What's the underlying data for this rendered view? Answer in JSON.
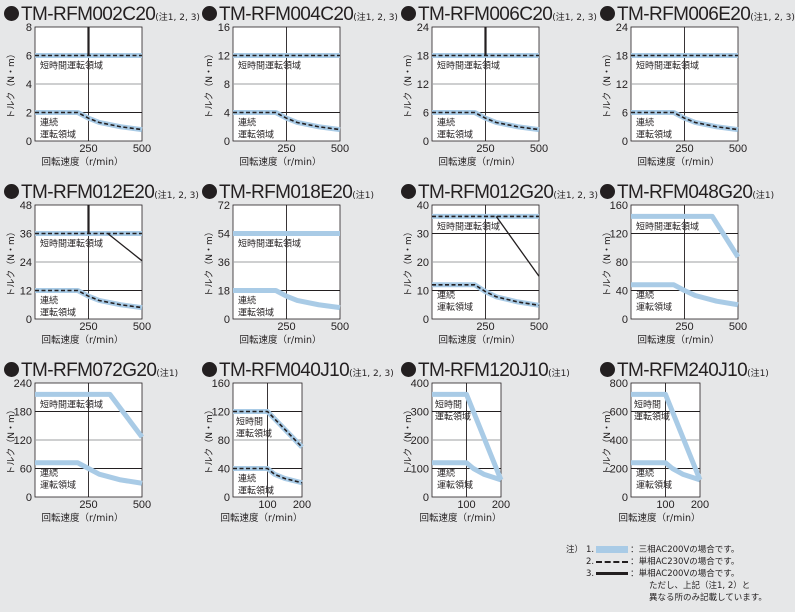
{
  "labels": {
    "y_axis": "トルク（N・m）",
    "x_axis": "回転速度（r/min）",
    "short_time_region": "短時間運転領域",
    "short_time_region_line1": "短時間",
    "short_time_region_line2": "運転領域",
    "continuous_region_line1": "連続",
    "continuous_region_line2": "運転領域"
  },
  "colors": {
    "background": "#e6e7e8",
    "plot_bg": "#ffffff",
    "three_phase_ac200v": "#a9cbe6",
    "single_phase_ac230v": "#231f20",
    "single_phase_ac200v": "#231f20",
    "grid": "#231f20",
    "grid_light": "#aaaaaa"
  },
  "notes": {
    "prefix": "注）",
    "items": [
      {
        "num": "1.",
        "style": "three_phase_ac200v",
        "text": "：三相AC200Vの場合です。"
      },
      {
        "num": "2.",
        "style": "single_phase_ac230v",
        "text": "：単相AC230Vの場合です。"
      },
      {
        "num": "3.",
        "style": "single_phase_ac200v",
        "text": "：単相AC200Vの場合です。"
      }
    ],
    "extra_line1": "ただし、上記（注1, 2）と",
    "extra_line2": "異なる所のみ記載しています。"
  },
  "chart_data": [
    {
      "type": "line",
      "title": "TM-RFM002C20",
      "note": "(注1, 2, 3)",
      "xlabel": "回転速度（r/min）",
      "ylabel": "トルク（N・m）",
      "xlim": [
        0,
        500
      ],
      "ylim": [
        0,
        8
      ],
      "xticks": [
        "250",
        "500"
      ],
      "yticks": [
        "0",
        "2",
        "4",
        "6",
        "8"
      ],
      "short_label": "one",
      "series": [
        {
          "name": "三相AC200V 短時間",
          "style": "blue",
          "x": [
            0,
            500
          ],
          "y": [
            6,
            6
          ]
        },
        {
          "name": "三相AC200V 連続",
          "style": "blue",
          "x": [
            0,
            200,
            250,
            300,
            400,
            500
          ],
          "y": [
            2,
            2,
            1.6,
            1.3,
            1.0,
            0.8
          ]
        },
        {
          "name": "単相AC230V 短時間",
          "style": "dash",
          "x": [
            0,
            500
          ],
          "y": [
            6,
            6
          ]
        },
        {
          "name": "単相AC230V 連続",
          "style": "dash",
          "x": [
            0,
            200,
            250,
            300,
            400,
            500
          ],
          "y": [
            2,
            2,
            1.6,
            1.3,
            1.0,
            0.8
          ]
        },
        {
          "name": "単相AC200V",
          "style": "solid",
          "x": [
            250,
            250
          ],
          "y": [
            6,
            8
          ]
        }
      ]
    },
    {
      "type": "line",
      "title": "TM-RFM004C20",
      "note": "(注1, 2, 3)",
      "xlabel": "回転速度（r/min）",
      "ylabel": "トルク（N・m）",
      "xlim": [
        0,
        500
      ],
      "ylim": [
        0,
        16
      ],
      "xticks": [
        "250",
        "500"
      ],
      "yticks": [
        "0",
        "4",
        "8",
        "12",
        "16"
      ],
      "short_label": "one",
      "series": [
        {
          "name": "三相AC200V 短時間",
          "style": "blue",
          "x": [
            0,
            500
          ],
          "y": [
            12,
            12
          ]
        },
        {
          "name": "三相AC200V 連続",
          "style": "blue",
          "x": [
            0,
            200,
            250,
            300,
            400,
            500
          ],
          "y": [
            4,
            4,
            3.2,
            2.6,
            2.0,
            1.6
          ]
        },
        {
          "name": "単相AC230V 短時間",
          "style": "dash",
          "x": [
            0,
            500
          ],
          "y": [
            12,
            12
          ]
        },
        {
          "name": "単相AC230V 連続",
          "style": "dash",
          "x": [
            0,
            200,
            250,
            300,
            400,
            500
          ],
          "y": [
            4,
            4,
            3.2,
            2.6,
            2.0,
            1.6
          ]
        }
      ]
    },
    {
      "type": "line",
      "title": "TM-RFM006C20",
      "note": "(注1, 2, 3)",
      "xlabel": "回転速度（r/min）",
      "ylabel": "トルク（N・m）",
      "xlim": [
        0,
        500
      ],
      "ylim": [
        0,
        24
      ],
      "xticks": [
        "250",
        "500"
      ],
      "yticks": [
        "0",
        "6",
        "12",
        "18",
        "24"
      ],
      "short_label": "one",
      "series": [
        {
          "name": "三相AC200V 短時間",
          "style": "blue",
          "x": [
            0,
            500
          ],
          "y": [
            18,
            18
          ]
        },
        {
          "name": "三相AC200V 連続",
          "style": "blue",
          "x": [
            0,
            200,
            250,
            300,
            400,
            500
          ],
          "y": [
            6,
            6,
            4.8,
            3.9,
            3.0,
            2.4
          ]
        },
        {
          "name": "単相AC230V 短時間",
          "style": "dash",
          "x": [
            0,
            500
          ],
          "y": [
            18,
            18
          ]
        },
        {
          "name": "単相AC230V 連続",
          "style": "dash",
          "x": [
            0,
            200,
            250,
            300,
            400,
            500
          ],
          "y": [
            6,
            6,
            4.8,
            3.9,
            3.0,
            2.4
          ]
        },
        {
          "name": "単相AC200V",
          "style": "solid",
          "x": [
            250,
            250
          ],
          "y": [
            18,
            24
          ]
        }
      ]
    },
    {
      "type": "line",
      "title": "TM-RFM006E20",
      "note": "(注1, 2, 3)",
      "xlabel": "回転速度（r/min）",
      "ylabel": "トルク（N・m）",
      "xlim": [
        0,
        500
      ],
      "ylim": [
        0,
        24
      ],
      "xticks": [
        "250",
        "500"
      ],
      "yticks": [
        "0",
        "6",
        "12",
        "18",
        "24"
      ],
      "short_label": "one",
      "series": [
        {
          "name": "三相AC200V 短時間",
          "style": "blue",
          "x": [
            0,
            500
          ],
          "y": [
            18,
            18
          ]
        },
        {
          "name": "三相AC200V 連続",
          "style": "blue",
          "x": [
            0,
            200,
            250,
            300,
            400,
            500
          ],
          "y": [
            6,
            6,
            4.8,
            3.9,
            3.0,
            2.4
          ]
        },
        {
          "name": "単相AC230V 短時間",
          "style": "dash",
          "x": [
            0,
            500
          ],
          "y": [
            18,
            18
          ]
        },
        {
          "name": "単相AC230V 連続",
          "style": "dash",
          "x": [
            0,
            200,
            250,
            300,
            400,
            500
          ],
          "y": [
            6,
            6,
            4.8,
            3.9,
            3.0,
            2.4
          ]
        }
      ]
    },
    {
      "type": "line",
      "title": "TM-RFM012E20",
      "note": "(注1, 2, 3)",
      "xlabel": "回転速度（r/min）",
      "ylabel": "トルク（N・m）",
      "xlim": [
        0,
        500
      ],
      "ylim": [
        0,
        48
      ],
      "xticks": [
        "250",
        "500"
      ],
      "yticks": [
        "0",
        "12",
        "24",
        "36",
        "48"
      ],
      "short_label": "one",
      "series": [
        {
          "name": "三相AC200V 短時間",
          "style": "blue",
          "x": [
            0,
            500
          ],
          "y": [
            36,
            36
          ]
        },
        {
          "name": "三相AC200V 連続",
          "style": "blue",
          "x": [
            0,
            200,
            250,
            300,
            400,
            500
          ],
          "y": [
            12,
            12,
            9.6,
            7.8,
            6.0,
            4.8
          ]
        },
        {
          "name": "単相AC230V 短時間",
          "style": "dash",
          "x": [
            0,
            500
          ],
          "y": [
            36,
            36
          ]
        },
        {
          "name": "単相AC230V 連続",
          "style": "dash",
          "x": [
            0,
            200,
            250,
            300,
            400,
            500
          ],
          "y": [
            12,
            12,
            9.6,
            7.8,
            6.0,
            4.8
          ]
        },
        {
          "name": "単相AC200V",
          "style": "solid",
          "x": [
            250,
            250
          ],
          "y": [
            36,
            48
          ]
        },
        {
          "name": "単相AC200V 短時間",
          "style": "solid",
          "x": [
            340,
            500
          ],
          "y": [
            36,
            24.5
          ]
        }
      ]
    },
    {
      "type": "line",
      "title": "TM-RFM018E20",
      "note": "(注1)",
      "xlabel": "回転速度（r/min）",
      "ylabel": "トルク（N・m）",
      "xlim": [
        0,
        500
      ],
      "ylim": [
        0,
        72
      ],
      "xticks": [
        "250",
        "500"
      ],
      "yticks": [
        "0",
        "18",
        "36",
        "54",
        "72"
      ],
      "short_label": "one",
      "series": [
        {
          "name": "三相AC200V 短時間",
          "style": "blue",
          "x": [
            0,
            500
          ],
          "y": [
            54,
            54
          ]
        },
        {
          "name": "三相AC200V 連続",
          "style": "blue",
          "x": [
            0,
            200,
            250,
            300,
            400,
            500
          ],
          "y": [
            18,
            18,
            14.4,
            11.7,
            9.0,
            7.2
          ]
        }
      ]
    },
    {
      "type": "line",
      "title": "TM-RFM012G20",
      "note": "(注1, 2, 3)",
      "xlabel": "回転速度（r/min）",
      "ylabel": "トルク（N・m）",
      "xlim": [
        0,
        500
      ],
      "ylim": [
        0,
        40
      ],
      "xticks": [
        "250",
        "500"
      ],
      "yticks": [
        "0",
        "10",
        "20",
        "30",
        "40"
      ],
      "short_label": "one",
      "series": [
        {
          "name": "三相AC200V 短時間",
          "style": "blue",
          "x": [
            0,
            500
          ],
          "y": [
            36,
            36
          ]
        },
        {
          "name": "三相AC200V 連続",
          "style": "blue",
          "x": [
            0,
            200,
            250,
            300,
            400,
            500
          ],
          "y": [
            12,
            12,
            9.6,
            7.8,
            6.0,
            4.8
          ]
        },
        {
          "name": "単相AC230V 短時間",
          "style": "dash",
          "x": [
            0,
            500
          ],
          "y": [
            36,
            36
          ]
        },
        {
          "name": "単相AC230V 連続",
          "style": "dash",
          "x": [
            0,
            200,
            250,
            300,
            400,
            500
          ],
          "y": [
            12,
            12,
            9.6,
            7.8,
            6.0,
            4.8
          ]
        },
        {
          "name": "単相AC200V 短時間",
          "style": "solid",
          "x": [
            300,
            500
          ],
          "y": [
            36,
            15
          ]
        }
      ]
    },
    {
      "type": "line",
      "title": "TM-RFM048G20",
      "note": "(注1)",
      "xlabel": "回転速度（r/min）",
      "ylabel": "トルク（N・m）",
      "xlim": [
        0,
        500
      ],
      "ylim": [
        0,
        160
      ],
      "xticks": [
        "250",
        "500"
      ],
      "yticks": [
        "0",
        "40",
        "80",
        "120",
        "160"
      ],
      "short_label": "one",
      "series": [
        {
          "name": "三相AC200V 短時間",
          "style": "blue",
          "x": [
            0,
            380,
            500
          ],
          "y": [
            144,
            144,
            87
          ]
        },
        {
          "name": "三相AC200V 連続",
          "style": "blue",
          "x": [
            0,
            200,
            250,
            300,
            400,
            500
          ],
          "y": [
            48,
            48,
            40,
            33,
            25,
            20
          ]
        }
      ]
    },
    {
      "type": "line",
      "title": "TM-RFM072G20",
      "note": "(注1)",
      "xlabel": "回転速度（r/min）",
      "ylabel": "トルク（N・m）",
      "xlim": [
        0,
        500
      ],
      "ylim": [
        0,
        240
      ],
      "xticks": [
        "250",
        "500"
      ],
      "yticks": [
        "0",
        "60",
        "120",
        "180",
        "240"
      ],
      "short_label": "one",
      "series": [
        {
          "name": "三相AC200V 短時間",
          "style": "blue",
          "x": [
            0,
            350,
            500
          ],
          "y": [
            216,
            216,
            126
          ]
        },
        {
          "name": "三相AC200V 連続",
          "style": "blue",
          "x": [
            0,
            200,
            250,
            300,
            400,
            500
          ],
          "y": [
            72,
            72,
            60,
            48,
            36,
            29
          ]
        }
      ]
    },
    {
      "type": "line",
      "title": "TM-RFM040J10",
      "note": "(注1, 2, 3)",
      "xlabel": "回転速度（r/min）",
      "ylabel": "トルク（N・m）",
      "xlim": [
        0,
        200
      ],
      "ylim": [
        0,
        160
      ],
      "xticks": [
        "100",
        "200"
      ],
      "yticks": [
        "0",
        "40",
        "80",
        "120",
        "160"
      ],
      "short_label": "two",
      "series": [
        {
          "name": "三相AC200V 短時間",
          "style": "blue",
          "x": [
            0,
            100,
            200
          ],
          "y": [
            120,
            120,
            70
          ]
        },
        {
          "name": "三相AC200V 連続",
          "style": "blue",
          "x": [
            0,
            100,
            120,
            150,
            200
          ],
          "y": [
            40,
            40,
            32,
            26,
            20
          ]
        },
        {
          "name": "単相AC230V 短時間",
          "style": "dash",
          "x": [
            0,
            100,
            200
          ],
          "y": [
            120,
            120,
            70
          ]
        },
        {
          "name": "単相AC230V 連続",
          "style": "dash",
          "x": [
            0,
            100,
            120,
            150,
            200
          ],
          "y": [
            40,
            40,
            32,
            26,
            20
          ]
        }
      ]
    },
    {
      "type": "line",
      "title": "TM-RFM120J10",
      "note": "(注1)",
      "xlabel": "回転速度（r/min）",
      "ylabel": "トルク（N・m）",
      "xlim": [
        0,
        200
      ],
      "ylim": [
        0,
        400
      ],
      "xticks": [
        "100",
        "200"
      ],
      "yticks": [
        "0",
        "100",
        "200",
        "300",
        "400"
      ],
      "short_label": "two",
      "series": [
        {
          "name": "三相AC200V 短時間",
          "style": "blue",
          "x": [
            0,
            100,
            200
          ],
          "y": [
            360,
            360,
            60
          ]
        },
        {
          "name": "三相AC200V 連続",
          "style": "blue",
          "x": [
            0,
            100,
            120,
            150,
            200
          ],
          "y": [
            120,
            120,
            100,
            80,
            60
          ]
        }
      ]
    },
    {
      "type": "line",
      "title": "TM-RFM240J10",
      "note": "(注1)",
      "xlabel": "回転速度（r/min）",
      "ylabel": "トルク（N・m）",
      "xlim": [
        0,
        200
      ],
      "ylim": [
        0,
        800
      ],
      "xticks": [
        "100",
        "200"
      ],
      "yticks": [
        "0",
        "200",
        "400",
        "600",
        "800"
      ],
      "short_label": "two",
      "series": [
        {
          "name": "三相AC200V 短時間",
          "style": "blue",
          "x": [
            0,
            100,
            200
          ],
          "y": [
            720,
            720,
            120
          ]
        },
        {
          "name": "三相AC200V 連続",
          "style": "blue",
          "x": [
            0,
            100,
            120,
            150,
            200
          ],
          "y": [
            240,
            240,
            200,
            160,
            120
          ]
        }
      ]
    }
  ]
}
